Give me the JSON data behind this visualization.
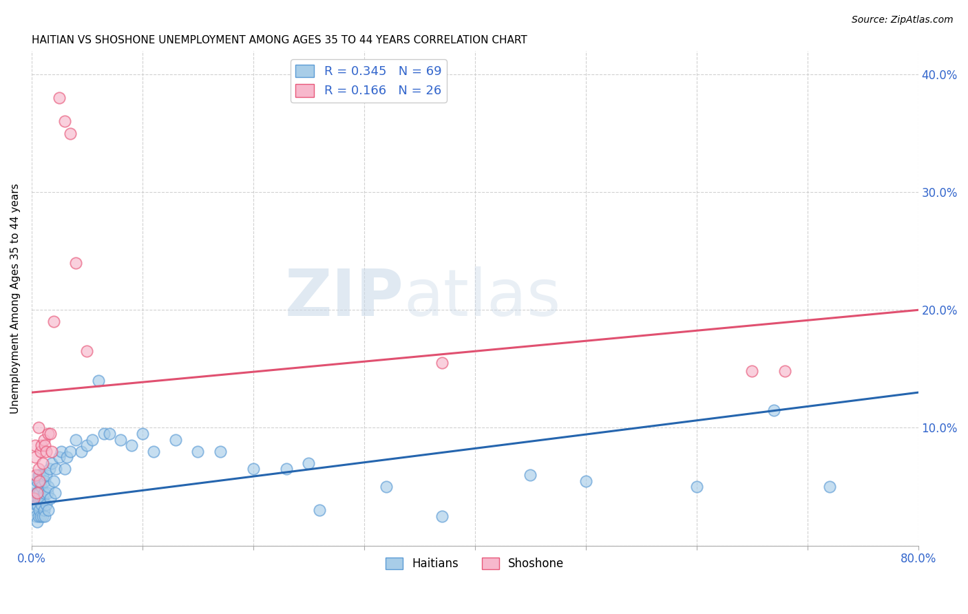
{
  "title": "HAITIAN VS SHOSHONE UNEMPLOYMENT AMONG AGES 35 TO 44 YEARS CORRELATION CHART",
  "source": "Source: ZipAtlas.com",
  "ylabel": "Unemployment Among Ages 35 to 44 years",
  "xlim": [
    0,
    0.8
  ],
  "ylim": [
    0,
    0.42
  ],
  "xticks": [
    0.0,
    0.1,
    0.2,
    0.3,
    0.4,
    0.5,
    0.6,
    0.7,
    0.8
  ],
  "xtick_labels": [
    "0.0%",
    "",
    "",
    "",
    "",
    "",
    "",
    "",
    "80.0%"
  ],
  "watermark_zip": "ZIP",
  "watermark_atlas": "atlas",
  "haitians_color": "#a8cde8",
  "shoshone_color": "#f7b8cc",
  "haitians_edge_color": "#5b9bd5",
  "shoshone_edge_color": "#e8587a",
  "haitians_line_color": "#2565ae",
  "shoshone_line_color": "#e05070",
  "legend_label1": "R = 0.345   N = 69",
  "legend_label2": "R = 0.166   N = 26",
  "haitians_x": [
    0.002,
    0.003,
    0.003,
    0.004,
    0.004,
    0.004,
    0.005,
    0.005,
    0.005,
    0.005,
    0.006,
    0.006,
    0.006,
    0.007,
    0.007,
    0.007,
    0.008,
    0.008,
    0.008,
    0.009,
    0.009,
    0.01,
    0.01,
    0.01,
    0.011,
    0.011,
    0.012,
    0.012,
    0.013,
    0.013,
    0.014,
    0.015,
    0.015,
    0.016,
    0.017,
    0.018,
    0.02,
    0.021,
    0.022,
    0.025,
    0.027,
    0.03,
    0.032,
    0.035,
    0.04,
    0.045,
    0.05,
    0.055,
    0.06,
    0.065,
    0.07,
    0.08,
    0.09,
    0.1,
    0.11,
    0.13,
    0.15,
    0.17,
    0.2,
    0.23,
    0.25,
    0.26,
    0.32,
    0.37,
    0.45,
    0.5,
    0.6,
    0.67,
    0.72
  ],
  "haitians_y": [
    0.04,
    0.03,
    0.045,
    0.025,
    0.035,
    0.05,
    0.02,
    0.035,
    0.045,
    0.055,
    0.025,
    0.04,
    0.06,
    0.03,
    0.045,
    0.06,
    0.025,
    0.04,
    0.055,
    0.035,
    0.05,
    0.025,
    0.04,
    0.06,
    0.03,
    0.045,
    0.025,
    0.055,
    0.035,
    0.06,
    0.045,
    0.03,
    0.05,
    0.065,
    0.04,
    0.07,
    0.055,
    0.045,
    0.065,
    0.075,
    0.08,
    0.065,
    0.075,
    0.08,
    0.09,
    0.08,
    0.085,
    0.09,
    0.14,
    0.095,
    0.095,
    0.09,
    0.085,
    0.095,
    0.08,
    0.09,
    0.08,
    0.08,
    0.065,
    0.065,
    0.07,
    0.03,
    0.05,
    0.025,
    0.06,
    0.055,
    0.05,
    0.115,
    0.05
  ],
  "shoshone_x": [
    0.002,
    0.003,
    0.003,
    0.004,
    0.005,
    0.006,
    0.006,
    0.007,
    0.008,
    0.009,
    0.01,
    0.011,
    0.012,
    0.013,
    0.015,
    0.017,
    0.018,
    0.02,
    0.025,
    0.03,
    0.035,
    0.04,
    0.05,
    0.37,
    0.65,
    0.68
  ],
  "shoshone_y": [
    0.04,
    0.075,
    0.085,
    0.06,
    0.045,
    0.065,
    0.1,
    0.055,
    0.08,
    0.085,
    0.07,
    0.09,
    0.085,
    0.08,
    0.095,
    0.095,
    0.08,
    0.19,
    0.38,
    0.36,
    0.35,
    0.24,
    0.165,
    0.155,
    0.148,
    0.148
  ],
  "background_color": "#ffffff",
  "grid_color": "#cccccc"
}
